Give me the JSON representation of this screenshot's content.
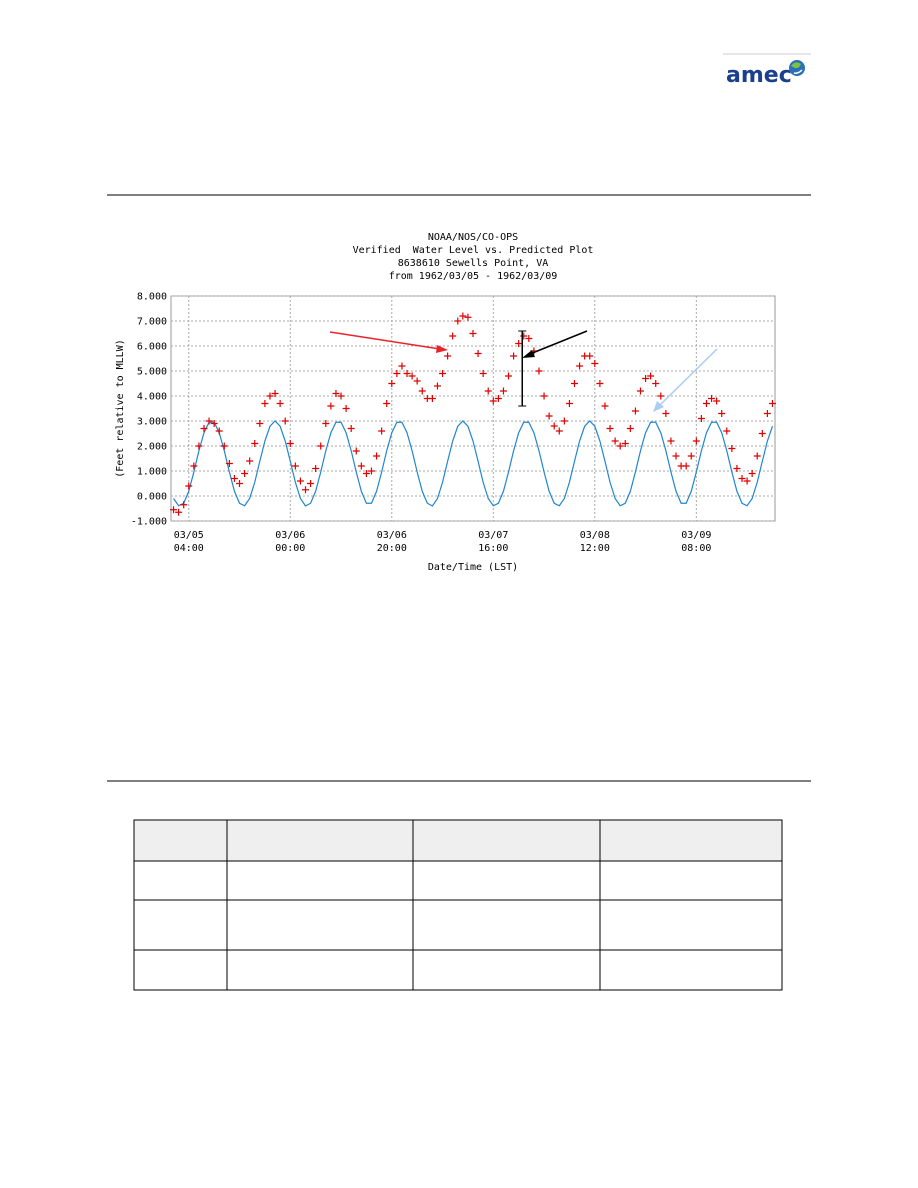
{
  "header": {
    "logo": "amec"
  },
  "chart_data": {
    "type": "line",
    "title": [
      "NOAA/NOS/CO-OPS",
      "Verified  Water Level vs. Predicted Plot",
      "8638610 Sewells Point, VA",
      "from 1962/03/05 - 1962/03/09"
    ],
    "x_label": "Date/Time (LST)",
    "y_label": "(Feet relative to MLLW)",
    "xlim": [
      0.5,
      119.5
    ],
    "xticks": [
      {
        "value": 4,
        "label": [
          "03/05",
          "04:00"
        ]
      },
      {
        "value": 24,
        "label": [
          "03/06",
          "00:00"
        ]
      },
      {
        "value": 44,
        "label": [
          "03/06",
          "20:00"
        ]
      },
      {
        "value": 64,
        "label": [
          "03/07",
          "16:00"
        ]
      },
      {
        "value": 84,
        "label": [
          "03/08",
          "12:00"
        ]
      },
      {
        "value": 104,
        "label": [
          "03/09",
          "08:00"
        ]
      }
    ],
    "ylim": [
      -1,
      8
    ],
    "yticks": [
      {
        "value": 8,
        "label": "8.000"
      },
      {
        "value": 7,
        "label": "7.000"
      },
      {
        "value": 6,
        "label": "6.000"
      },
      {
        "value": 5,
        "label": "5.000"
      },
      {
        "value": 4,
        "label": "4.000"
      },
      {
        "value": 3,
        "label": "3.000"
      },
      {
        "value": 2,
        "label": "2.000"
      },
      {
        "value": 1,
        "label": "1.000"
      },
      {
        "value": 0,
        "label": "0.000"
      },
      {
        "value": -1,
        "label": "-1.000"
      }
    ],
    "grid": true,
    "x": [
      1,
      2,
      3,
      4,
      5,
      6,
      7,
      8,
      9,
      10,
      11,
      12,
      13,
      14,
      15,
      16,
      17,
      18,
      19,
      20,
      21,
      22,
      23,
      24,
      25,
      26,
      27,
      28,
      29,
      30,
      31,
      32,
      33,
      34,
      35,
      36,
      37,
      38,
      39,
      40,
      41,
      42,
      43,
      44,
      45,
      46,
      47,
      48,
      49,
      50,
      51,
      52,
      53,
      54,
      55,
      56,
      57,
      58,
      59,
      60,
      61,
      62,
      63,
      64,
      65,
      66,
      67,
      68,
      69,
      70,
      71,
      72,
      73,
      74,
      75,
      76,
      77,
      78,
      79,
      80,
      81,
      82,
      83,
      84,
      85,
      86,
      87,
      88,
      89,
      90,
      91,
      92,
      93,
      94,
      95,
      96,
      97,
      98,
      99,
      100,
      101,
      102,
      103,
      104,
      105,
      106,
      107,
      108,
      109,
      110,
      111,
      112,
      113,
      114,
      115,
      116,
      117,
      118,
      119
    ],
    "series": [
      {
        "style": "line",
        "color": "#1f86d0",
        "values": [
          -0.1,
          -0.39,
          -0.29,
          0.19,
          0.96,
          1.81,
          2.53,
          2.95,
          2.95,
          2.53,
          1.81,
          0.96,
          0.19,
          -0.29,
          -0.39,
          -0.1,
          0.55,
          1.39,
          2.2,
          2.79,
          3.0,
          2.79,
          2.2,
          1.39,
          0.55,
          -0.1,
          -0.4,
          -0.29,
          0.19,
          0.96,
          1.81,
          2.53,
          2.95,
          2.95,
          2.53,
          1.81,
          0.96,
          0.19,
          -0.29,
          -0.29,
          0.19,
          0.96,
          1.81,
          2.53,
          2.95,
          2.95,
          2.53,
          1.81,
          0.96,
          0.19,
          -0.29,
          -0.4,
          -0.1,
          0.55,
          1.39,
          2.2,
          2.79,
          3.0,
          2.79,
          2.2,
          1.39,
          0.55,
          -0.1,
          -0.39,
          -0.29,
          0.19,
          0.96,
          1.81,
          2.53,
          2.95,
          2.95,
          2.53,
          1.81,
          0.96,
          0.19,
          -0.29,
          -0.39,
          -0.1,
          0.55,
          1.39,
          2.2,
          2.79,
          3.0,
          2.79,
          2.2,
          1.39,
          0.55,
          -0.1,
          -0.39,
          -0.29,
          0.19,
          0.96,
          1.81,
          2.53,
          2.95,
          2.95,
          2.53,
          1.81,
          0.96,
          0.19,
          -0.29,
          -0.29,
          0.19,
          0.96,
          1.81,
          2.53,
          2.95,
          2.95,
          2.53,
          1.81,
          0.96,
          0.19,
          -0.29,
          -0.39,
          -0.1,
          0.55,
          1.39,
          2.2,
          2.79
        ]
      },
      {
        "style": "plus",
        "color": "#e00000",
        "values": [
          -0.55,
          -0.65,
          -0.35,
          0.4,
          1.2,
          2.0,
          2.7,
          3.0,
          2.9,
          2.6,
          2.0,
          1.3,
          0.7,
          0.5,
          0.9,
          1.4,
          2.1,
          2.9,
          3.7,
          4.0,
          4.1,
          3.7,
          3.0,
          2.1,
          1.2,
          0.6,
          0.25,
          0.5,
          1.1,
          2.0,
          2.9,
          3.6,
          4.1,
          4.0,
          3.5,
          2.7,
          1.8,
          1.2,
          0.9,
          1.0,
          1.6,
          2.6,
          3.7,
          4.5,
          4.9,
          5.2,
          4.9,
          4.8,
          4.6,
          4.2,
          3.9,
          3.9,
          4.4,
          4.9,
          5.6,
          6.4,
          7.0,
          7.2,
          7.15,
          6.5,
          5.7,
          4.9,
          4.2,
          3.8,
          3.9,
          4.2,
          4.8,
          5.6,
          6.1,
          6.4,
          6.3,
          5.8,
          5.0,
          4.0,
          3.2,
          2.8,
          2.6,
          3.0,
          3.7,
          4.5,
          5.2,
          5.6,
          5.6,
          5.3,
          4.5,
          3.6,
          2.7,
          2.2,
          2.0,
          2.1,
          2.7,
          3.4,
          4.2,
          4.7,
          4.8,
          4.5,
          4.0,
          3.3,
          2.2,
          1.6,
          1.2,
          1.2,
          1.6,
          2.2,
          3.1,
          3.7,
          3.9,
          3.8,
          3.3,
          2.6,
          1.9,
          1.1,
          0.7,
          0.6,
          0.9,
          1.6,
          2.5,
          3.3,
          3.7
        ]
      }
    ],
    "range_bar": {
      "x": 69.7,
      "low": 3.6,
      "high": 6.6,
      "color": "#000000"
    }
  }
}
